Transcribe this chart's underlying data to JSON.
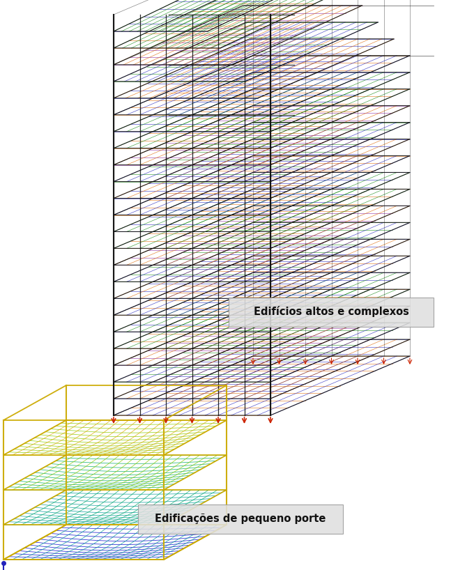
{
  "bg_color": "#ffffff",
  "label1_text": "Edifícios altos e complexos",
  "label2_text": "Edificações de pequeno porte",
  "label_fontsize": 10.5,
  "label_fontweight": "bold",
  "label_bg": "#e0e0e0",
  "label_border": "#999999",
  "colors": {
    "blue": "#2222bb",
    "red": "#cc2200",
    "green": "#118811",
    "orange": "#dd6600",
    "purple": "#882299",
    "black": "#111111",
    "yellow": "#ccaa00",
    "cyan": "#00aacc",
    "teal": "#009988",
    "dark_blue": "#000080",
    "light_orange": "#ff9944"
  }
}
